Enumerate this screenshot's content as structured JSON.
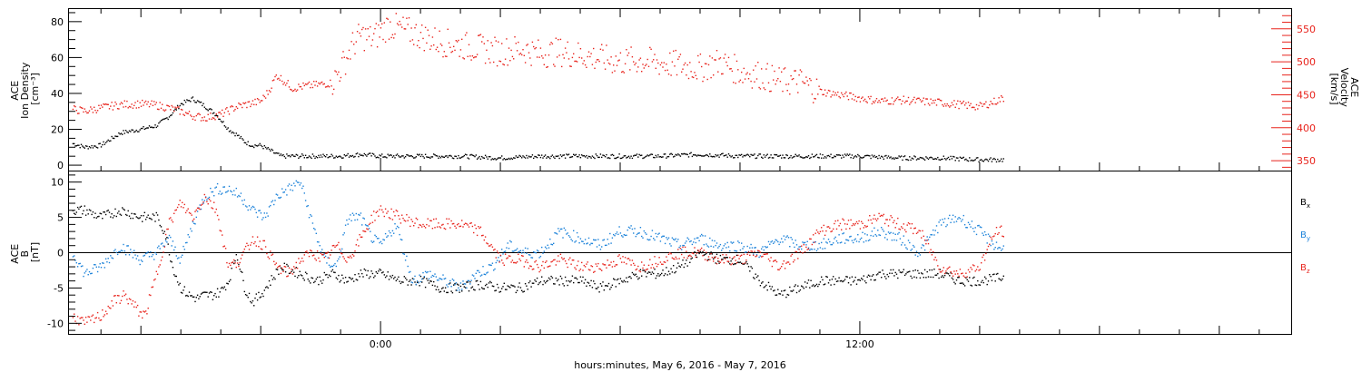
{
  "xlabel": "hours:minutes, May  6, 2016 - May  7, 2016",
  "colors": {
    "black": "#000000",
    "red": "#e8231c",
    "blue": "#1b82d9"
  },
  "chart_data": [
    {
      "type": "scatter",
      "panel": "density-velocity",
      "ylabel_left": [
        "ACE",
        "Ion Density",
        "[cm⁻³]"
      ],
      "ylabel_right": [
        "ACE",
        "Velocity",
        "[km/s]"
      ],
      "x_unit": "hours relative to May 7 00:00",
      "xlim": [
        -7.8,
        22.8
      ],
      "x_ticks": [
        {
          "x": 0,
          "label": "0:00"
        },
        {
          "x": 12,
          "label": "12:00"
        }
      ],
      "ylim_left": [
        -3,
        87
      ],
      "yticks_left": [
        0,
        20,
        40,
        60,
        80
      ],
      "ylim_right": [
        335,
        580
      ],
      "yticks_right": [
        350,
        400,
        450,
        500,
        550
      ],
      "grid": false,
      "series": [
        {
          "axis": "left",
          "color": "#000000",
          "x": [
            -7.7,
            -7.4,
            -7.0,
            -6.5,
            -6.0,
            -5.6,
            -5.3,
            -5.0,
            -4.7,
            -4.4,
            -4.1,
            -3.8,
            -3.6,
            -3.4,
            -3.2,
            -3.0,
            -2.5,
            -2.0,
            -1.5,
            -1.0,
            -0.5,
            0.0,
            1.0,
            2.0,
            3.0,
            4.0,
            5.0,
            6.0,
            7.0,
            8.0,
            9.0,
            10.0,
            11.0,
            12.0,
            13.0,
            14.0,
            15.0,
            15.6
          ],
          "y": [
            12,
            10,
            11,
            18,
            20,
            22,
            27,
            34,
            37,
            33,
            28,
            20,
            17,
            13,
            11,
            11,
            5,
            5,
            5,
            5,
            6,
            5,
            5,
            5,
            4,
            5,
            5,
            5,
            5,
            6,
            5,
            5,
            5,
            5,
            4,
            4,
            3,
            3
          ]
        },
        {
          "axis": "right",
          "color": "#e8231c",
          "x": [
            -7.7,
            -7.4,
            -7.0,
            -6.5,
            -6.0,
            -5.6,
            -5.3,
            -5.0,
            -4.7,
            -4.4,
            -4.0,
            -3.6,
            -3.3,
            -3.0,
            -2.8,
            -2.6,
            -2.4,
            -2.2,
            -2.0,
            -1.6,
            -1.2,
            -0.9,
            -0.7,
            -0.5,
            -0.2,
            0.0,
            0.2,
            0.5,
            1.0,
            1.5,
            2.0,
            2.5,
            3.0,
            3.5,
            4.0,
            4.5,
            5.0,
            5.5,
            6.0,
            6.5,
            7.0,
            7.5,
            8.0,
            8.5,
            9.0,
            9.5,
            10.0,
            10.5,
            11.0,
            11.5,
            12.0,
            12.5,
            13.0,
            13.5,
            14.0,
            14.5,
            15.0,
            15.4,
            15.6
          ],
          "y": [
            428,
            425,
            430,
            435,
            436,
            434,
            430,
            425,
            418,
            415,
            420,
            432,
            436,
            440,
            455,
            480,
            470,
            460,
            462,
            465,
            468,
            500,
            525,
            540,
            535,
            545,
            555,
            550,
            540,
            530,
            525,
            520,
            515,
            520,
            512,
            515,
            510,
            505,
            500,
            502,
            498,
            495,
            490,
            500,
            485,
            480,
            470,
            470,
            455,
            450,
            445,
            440,
            442,
            440,
            438,
            435,
            432,
            440,
            445
          ]
        }
      ]
    },
    {
      "type": "scatter",
      "panel": "magnetic-field",
      "ylabel_left": [
        "ACE",
        "B",
        "[nT]"
      ],
      "legend": [
        "Bx",
        "By",
        "Bz"
      ],
      "legend_placement": "right",
      "x_unit": "hours relative to May 7 00:00",
      "xlim": [
        -7.8,
        22.8
      ],
      "ylim": [
        -11.5,
        11.5
      ],
      "yticks": [
        -10,
        -5,
        0,
        5,
        10
      ],
      "zero_line": true,
      "series": [
        {
          "name": "Bx",
          "color": "#000000",
          "x": [
            -7.7,
            -7.4,
            -7.0,
            -6.5,
            -6.0,
            -5.6,
            -5.4,
            -5.2,
            -5.0,
            -4.8,
            -4.6,
            -4.4,
            -4.2,
            -4.0,
            -3.8,
            -3.6,
            -3.4,
            -3.2,
            -3.0,
            -2.5,
            -2.0,
            -1.6,
            -1.2,
            -0.8,
            -0.5,
            0.0,
            0.5,
            1.0,
            1.5,
            2.0,
            2.5,
            3.0,
            3.5,
            4.0,
            4.5,
            5.0,
            5.5,
            6.0,
            6.5,
            7.0,
            7.5,
            8.0,
            8.5,
            9.0,
            9.5,
            10.0,
            10.5,
            11.0,
            11.5,
            12.0,
            12.5,
            13.0,
            13.5,
            14.0,
            14.5,
            15.0,
            15.6
          ],
          "y": [
            6,
            6,
            5,
            6,
            5,
            5,
            3,
            -2,
            -5,
            -6,
            -6.5,
            -6,
            -6,
            -5.5,
            -4,
            0,
            -5,
            -7,
            -6,
            -2,
            -3,
            -4,
            -3,
            -4,
            -3,
            -3,
            -4,
            -4,
            -5,
            -5,
            -4.5,
            -5,
            -5,
            -4,
            -4,
            -4,
            -5,
            -4,
            -3,
            -3,
            -2,
            0,
            -1,
            -1,
            -4,
            -6,
            -5,
            -4,
            -4,
            -4,
            -3,
            -3,
            -3,
            -3,
            -4,
            -4,
            -3.5
          ]
        },
        {
          "name": "By",
          "color": "#1b82d9",
          "x": [
            -7.7,
            -7.4,
            -7.0,
            -6.5,
            -6.0,
            -5.6,
            -5.3,
            -5.0,
            -4.7,
            -4.4,
            -4.1,
            -3.8,
            -3.5,
            -3.2,
            -2.9,
            -2.6,
            -2.3,
            -2.0,
            -1.7,
            -1.4,
            -1.1,
            -0.8,
            -0.5,
            -0.2,
            0.0,
            0.4,
            0.8,
            1.2,
            1.6,
            2.0,
            2.4,
            2.8,
            3.2,
            3.6,
            4.0,
            4.5,
            5.0,
            5.5,
            6.0,
            6.5,
            7.0,
            7.5,
            8.0,
            8.5,
            9.0,
            9.5,
            10.0,
            10.5,
            11.0,
            11.5,
            12.0,
            12.5,
            13.0,
            13.5,
            14.0,
            14.5,
            15.0,
            15.4,
            15.6
          ],
          "y": [
            0,
            -3,
            -2,
            1,
            -1,
            0,
            2,
            -1,
            4,
            8,
            9,
            9,
            8,
            6,
            5,
            8,
            9,
            10,
            4,
            -1,
            -2,
            5,
            5,
            2,
            1,
            4,
            -4,
            -3,
            -4,
            -5,
            -3,
            -2,
            1,
            0,
            0,
            3,
            2,
            1,
            3,
            3,
            2,
            1,
            2,
            1,
            1,
            0,
            2,
            1,
            1,
            2,
            2,
            3,
            2,
            0,
            4,
            5,
            3,
            1,
            0.5
          ]
        },
        {
          "name": "Bz",
          "color": "#e8231c",
          "x": [
            -7.7,
            -7.4,
            -7.0,
            -6.7,
            -6.4,
            -6.1,
            -5.9,
            -5.6,
            -5.3,
            -5.0,
            -4.7,
            -4.4,
            -4.1,
            -3.8,
            -3.5,
            -3.2,
            -2.9,
            -2.6,
            -2.3,
            -2.0,
            -1.7,
            -1.4,
            -1.1,
            -0.8,
            -0.5,
            -0.2,
            0.0,
            0.5,
            1.0,
            1.5,
            2.0,
            2.5,
            3.0,
            3.5,
            4.0,
            4.5,
            5.0,
            5.5,
            6.0,
            6.5,
            7.0,
            7.5,
            8.0,
            8.5,
            9.0,
            9.5,
            10.0,
            10.5,
            11.0,
            11.5,
            12.0,
            12.5,
            13.0,
            13.5,
            14.0,
            14.5,
            15.0,
            15.4,
            15.6
          ],
          "y": [
            -9,
            -10,
            -9,
            -7,
            -6,
            -8,
            -9,
            -3,
            4,
            7,
            5,
            8,
            6,
            -2,
            -1,
            2,
            1,
            -2,
            -3,
            -1,
            0,
            -1,
            1,
            -1,
            2,
            5,
            6,
            5,
            4,
            4,
            4,
            3,
            -1,
            -1,
            -2,
            -1,
            -2,
            -2,
            -1,
            -2,
            -1,
            0,
            0,
            -1,
            -1,
            0,
            -2,
            0,
            3,
            4,
            4,
            5,
            4,
            3,
            -2,
            -3,
            -2,
            3,
            3
          ]
        }
      ]
    }
  ]
}
